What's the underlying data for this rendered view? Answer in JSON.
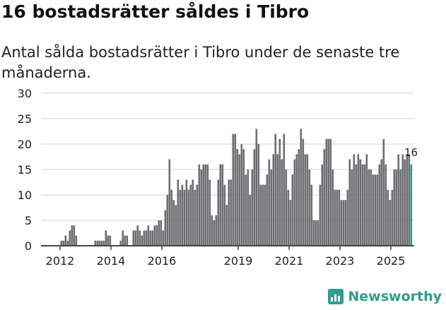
{
  "title": "16 bostadsrätter såldes i Tibro",
  "subtitle": "Antal sålda bostadsrätter i Tibro under de senaste tre månaderna.",
  "logo_text": "Newsworthy",
  "colors": {
    "bar": "#6e6d72",
    "highlight": "#1f9e94",
    "brand": "#2f9c8e"
  },
  "chart_data": {
    "type": "bar",
    "title": "16 bostadsrätter såldes i Tibro",
    "xlabel": "",
    "ylabel": "",
    "ylim": [
      0,
      30
    ],
    "yticks": [
      "0",
      "5",
      "10",
      "15",
      "20",
      "25",
      "30"
    ],
    "xticks": [
      {
        "label": "2012",
        "month_index": 0
      },
      {
        "label": "2014",
        "month_index": 24
      },
      {
        "label": "2016",
        "month_index": 48
      },
      {
        "label": "2019",
        "month_index": 84
      },
      {
        "label": "2021",
        "month_index": 108
      },
      {
        "label": "2023",
        "month_index": 132
      },
      {
        "label": "2025",
        "month_index": 156
      }
    ],
    "start": "2012-01",
    "frequency": "monthly",
    "values": [
      1,
      1,
      2,
      1,
      3,
      4,
      4,
      2,
      0,
      0,
      0,
      0,
      0,
      0,
      0,
      0,
      1,
      1,
      1,
      1,
      1,
      3,
      2,
      2,
      0,
      0,
      0,
      0,
      1,
      3,
      2,
      2,
      0,
      0,
      3,
      3,
      4,
      3,
      2,
      3,
      3,
      4,
      3,
      3,
      4,
      4,
      5,
      5,
      3,
      7,
      10,
      17,
      11,
      9,
      8,
      13,
      11,
      12,
      11,
      13,
      11,
      12,
      13,
      11,
      12,
      16,
      15,
      16,
      16,
      16,
      13,
      6,
      5,
      6,
      13,
      16,
      16,
      12,
      8,
      13,
      13,
      22,
      22,
      19,
      18,
      20,
      19,
      14,
      15,
      10,
      15,
      19,
      23,
      20,
      12,
      12,
      12,
      14,
      17,
      15,
      18,
      22,
      18,
      21,
      17,
      22,
      15,
      11,
      9,
      14,
      17,
      18,
      19,
      23,
      21,
      18,
      18,
      15,
      12,
      5,
      5,
      5,
      12,
      16,
      19,
      21,
      21,
      21,
      15,
      11,
      11,
      11,
      9,
      9,
      9,
      11,
      17,
      15,
      18,
      16,
      18,
      17,
      16,
      16,
      18,
      15,
      15,
      14,
      14,
      14,
      16,
      17,
      21,
      16,
      11,
      9,
      11,
      15,
      15,
      18,
      15,
      18,
      17,
      18,
      18,
      16
    ],
    "highlight_last": true,
    "last_label": "16",
    "grid": true
  }
}
